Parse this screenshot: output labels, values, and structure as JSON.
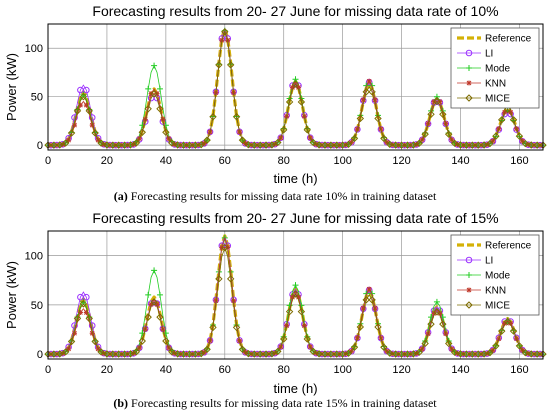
{
  "chart_data": [
    {
      "type": "line",
      "title": "Forecasting results from 20- 27 June for missing data rate of 10%",
      "xlabel": "time (h)",
      "ylabel": "Power (kW)",
      "xlim": [
        0,
        168
      ],
      "ylim": [
        -5,
        125
      ],
      "xticks": [
        0,
        20,
        40,
        60,
        80,
        100,
        120,
        140,
        160
      ],
      "yticks": [
        0,
        50,
        100
      ],
      "grid": true,
      "legend_position": "top-right",
      "caption_prefix": "(a)",
      "caption_text": "Forecasting results for missing data rate 10% in training dataset",
      "daily_peaks": [
        {
          "center_hour": 12,
          "peak_kw": 55
        },
        {
          "center_hour": 36,
          "peak_kw": 58
        },
        {
          "center_hour": 60,
          "peak_kw": 120
        },
        {
          "center_hour": 84,
          "peak_kw": 66
        },
        {
          "center_hour": 109,
          "peak_kw": 64
        },
        {
          "center_hour": 132,
          "peak_kw": 48
        },
        {
          "center_hour": 156,
          "peak_kw": 38
        }
      ],
      "series": [
        {
          "name": "Reference",
          "color": "#d4b106",
          "style": "thick-dashed",
          "offsets": [
            0,
            0,
            0,
            0,
            0,
            0,
            0
          ]
        },
        {
          "name": "LI",
          "color": "#9b30ff",
          "style": "circle-marker",
          "offsets": [
            7,
            -5,
            0,
            1,
            1,
            0,
            -3
          ]
        },
        {
          "name": "Mode",
          "color": "#22cc22",
          "style": "plus-marker",
          "offsets": [
            -3,
            24,
            -2,
            2,
            3,
            2,
            -2
          ]
        },
        {
          "name": "KNN",
          "color": "#c0392b",
          "style": "star-marker",
          "offsets": [
            -10,
            0,
            -2,
            -1,
            2,
            1,
            -1
          ]
        },
        {
          "name": "MICE",
          "color": "#7d6b00",
          "style": "diamond-marker",
          "offsets": [
            -5,
            -5,
            -3,
            -3,
            -4,
            -3,
            -1
          ]
        }
      ]
    },
    {
      "type": "line",
      "title": "Forecasting results from 20- 27 June for missing data rate of 15%",
      "xlabel": "time (h)",
      "ylabel": "Power (kW)",
      "xlim": [
        0,
        168
      ],
      "ylim": [
        -5,
        125
      ],
      "xticks": [
        0,
        20,
        40,
        60,
        80,
        100,
        120,
        140,
        160
      ],
      "yticks": [
        0,
        50,
        100
      ],
      "grid": true,
      "legend_position": "top-right",
      "caption_prefix": "(b)",
      "caption_text": "Forecasting results for missing data rate 15% in training dataset",
      "daily_peaks": [
        {
          "center_hour": 12,
          "peak_kw": 56
        },
        {
          "center_hour": 36,
          "peak_kw": 58
        },
        {
          "center_hour": 60,
          "peak_kw": 120
        },
        {
          "center_hour": 84,
          "peak_kw": 66
        },
        {
          "center_hour": 109,
          "peak_kw": 64
        },
        {
          "center_hour": 132,
          "peak_kw": 48
        },
        {
          "center_hour": 156,
          "peak_kw": 36
        }
      ],
      "series": [
        {
          "name": "Reference",
          "color": "#d4b106",
          "style": "thick-dashed",
          "offsets": [
            0,
            0,
            0,
            0,
            0,
            0,
            0
          ]
        },
        {
          "name": "LI",
          "color": "#9b30ff",
          "style": "circle-marker",
          "offsets": [
            7,
            -2,
            0,
            0,
            1,
            0,
            0
          ]
        },
        {
          "name": "Mode",
          "color": "#22cc22",
          "style": "plus-marker",
          "offsets": [
            -3,
            27,
            -2,
            4,
            3,
            5,
            -2
          ]
        },
        {
          "name": "KNN",
          "color": "#c0392b",
          "style": "star-marker",
          "offsets": [
            -10,
            -3,
            -2,
            -3,
            2,
            -3,
            -2
          ]
        },
        {
          "name": "MICE",
          "color": "#7d6b00",
          "style": "diamond-marker",
          "offsets": [
            -5,
            -5,
            -12,
            -5,
            -4,
            -5,
            -3
          ]
        }
      ]
    }
  ]
}
